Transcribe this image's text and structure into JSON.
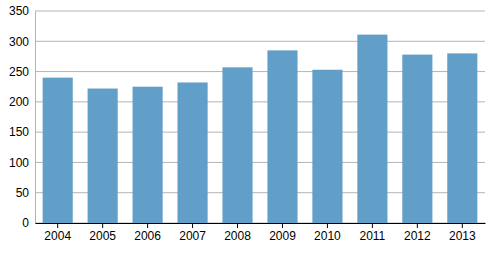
{
  "chart_data": {
    "type": "bar",
    "categories": [
      "2004",
      "2005",
      "2006",
      "2007",
      "2008",
      "2009",
      "2010",
      "2011",
      "2012",
      "2013"
    ],
    "values": [
      240,
      222,
      225,
      232,
      257,
      285,
      253,
      311,
      278,
      280
    ],
    "color": "#619fc9",
    "ylim": [
      0,
      350
    ],
    "yticks": [
      0,
      50,
      100,
      150,
      200,
      250,
      300,
      350
    ],
    "grid": true
  }
}
